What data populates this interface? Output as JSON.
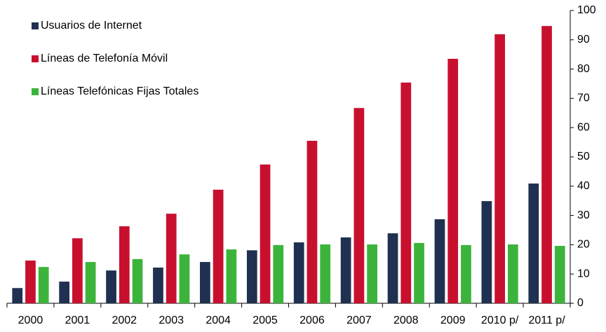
{
  "chart_data": {
    "type": "bar",
    "categories": [
      "2000",
      "2001",
      "2002",
      "2003",
      "2004",
      "2005",
      "2006",
      "2007",
      "2008",
      "2009",
      "2010 p/",
      "2011 p/"
    ],
    "series": [
      {
        "name": "Usuarios de Internet",
        "color": "#1f3050",
        "values": [
          5.2,
          7.4,
          11.2,
          12.2,
          14.1,
          18.1,
          20.8,
          22.5,
          23.9,
          28.7,
          34.9,
          40.9
        ]
      },
      {
        "name": "Líneas de Telefonía Móvil",
        "color": "#c8102e",
        "values": [
          14.6,
          22.2,
          26.3,
          30.6,
          38.8,
          47.4,
          55.5,
          66.7,
          75.4,
          83.5,
          91.9,
          94.7
        ]
      },
      {
        "name": "Líneas Telefónicas Fijas Totales",
        "color": "#3cb43c",
        "values": [
          12.4,
          14.1,
          15.1,
          16.7,
          18.4,
          19.9,
          20.1,
          20.1,
          20.6,
          19.9,
          20.1,
          19.6
        ]
      }
    ],
    "ylim": [
      0,
      100
    ],
    "yticks": [
      0,
      10,
      20,
      30,
      40,
      50,
      60,
      70,
      80,
      90,
      100
    ],
    "yaxis_side": "right",
    "legend": "top-left"
  }
}
